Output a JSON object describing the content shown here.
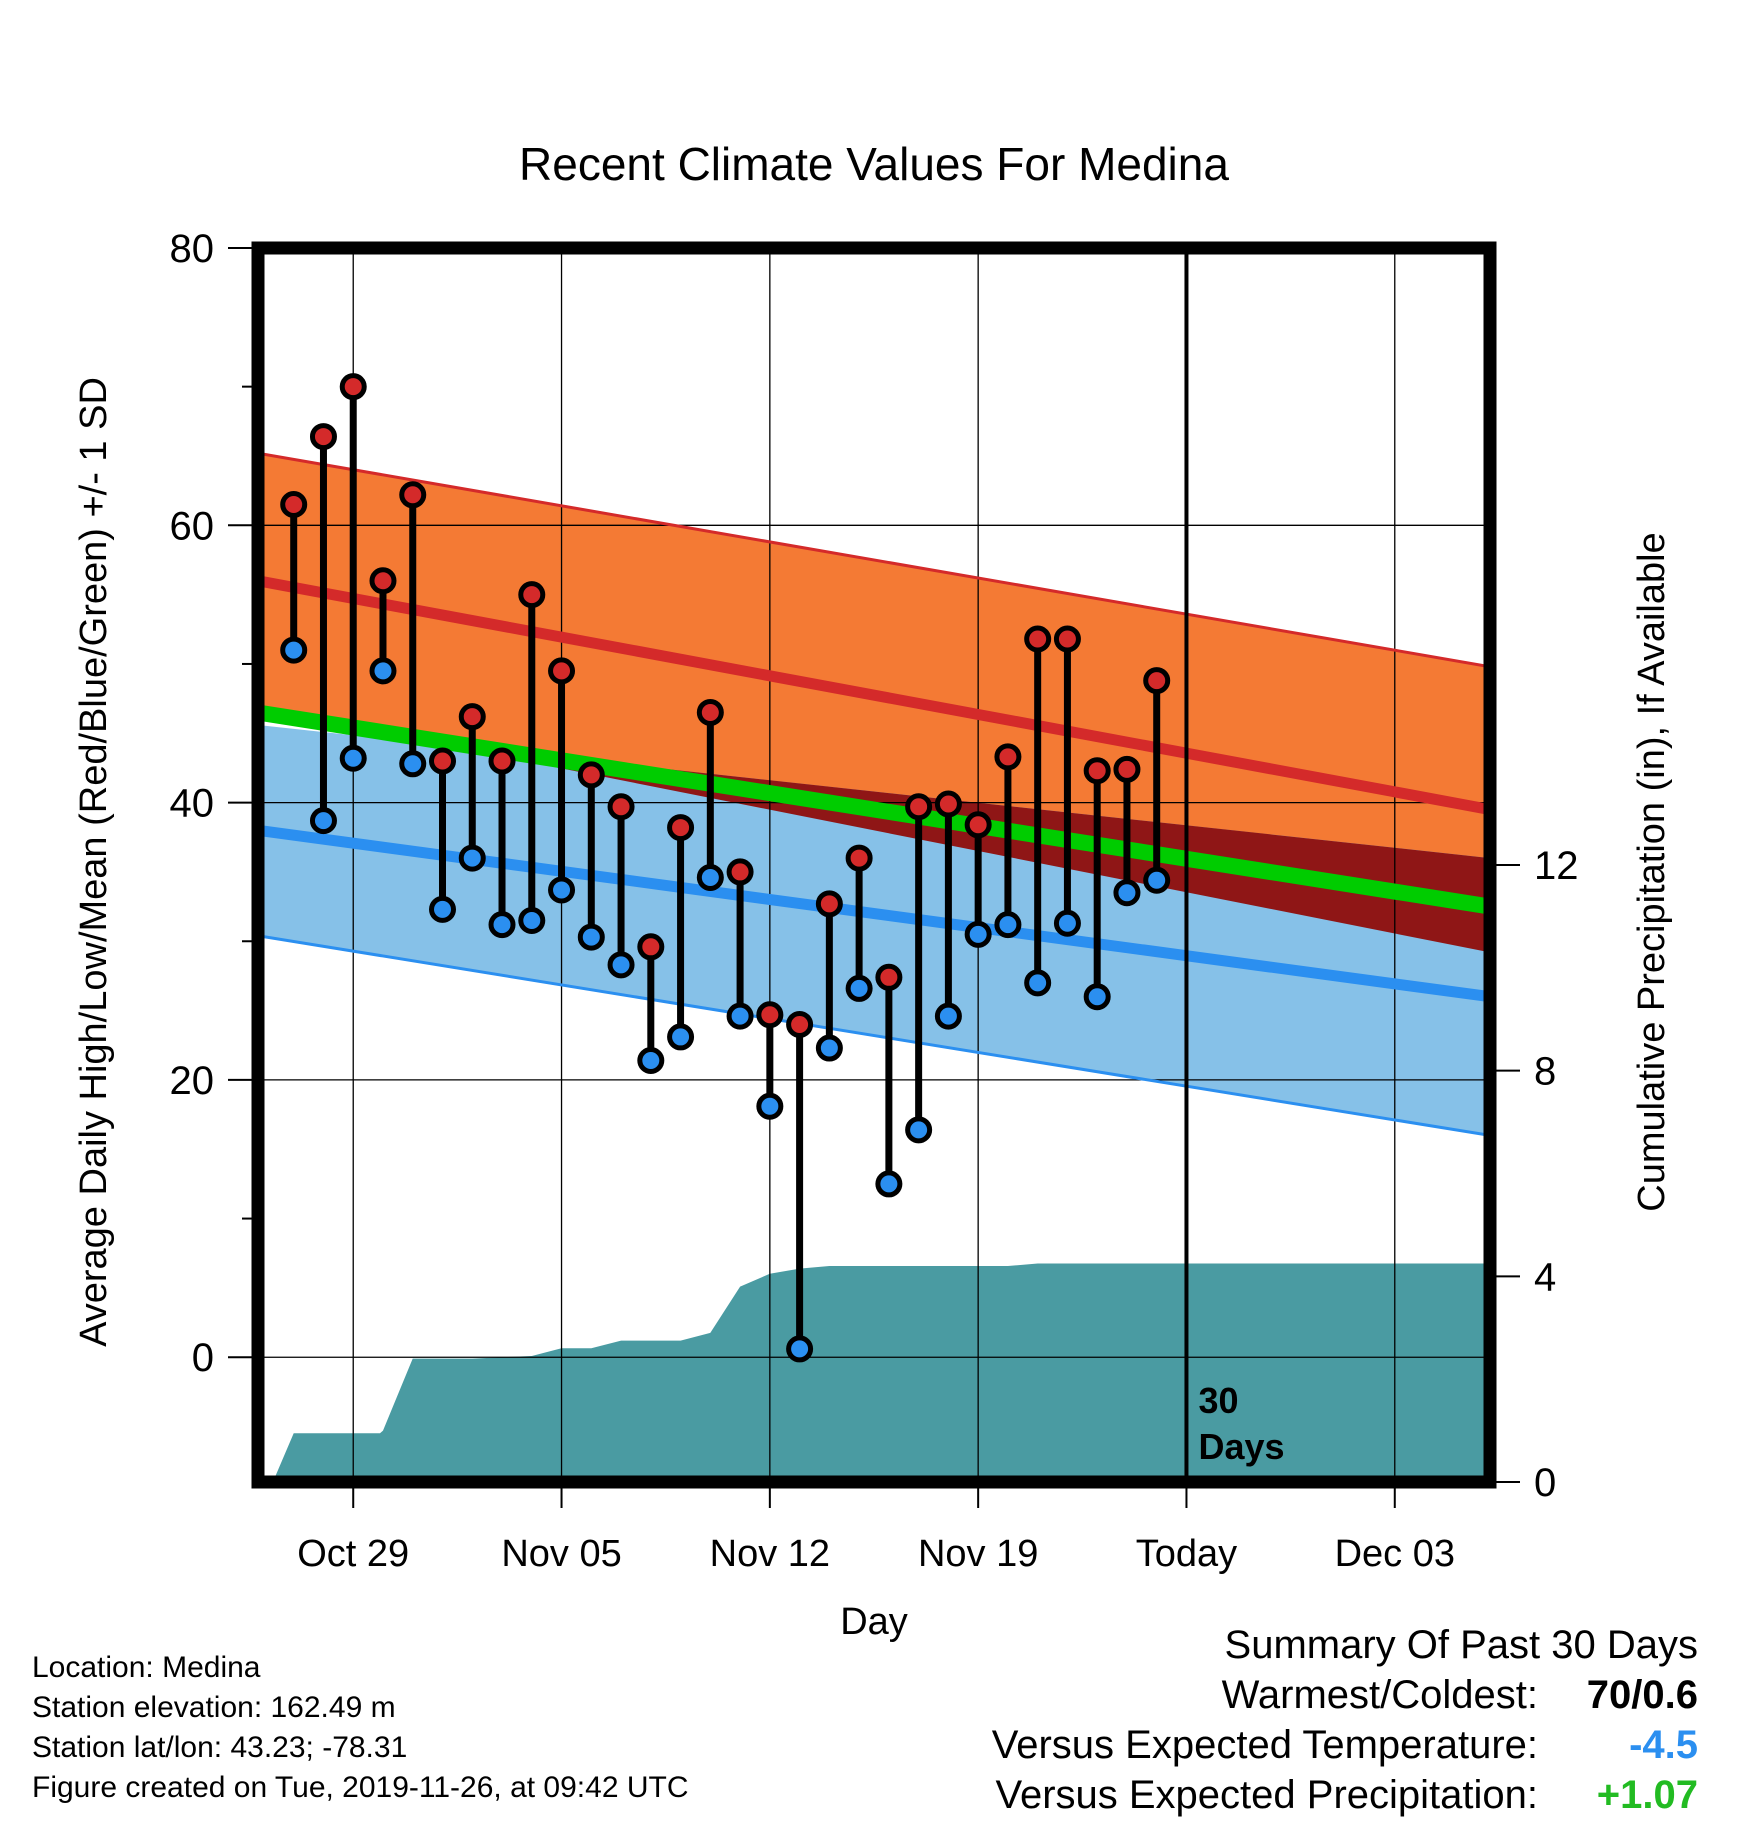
{
  "chart_data": {
    "type": "line",
    "title": "Recent Climate Values For Medina",
    "xlabel": "Day",
    "ylabel": "Average Daily High/Low/Mean (Red/Blue/Green) +/- 1 SD",
    "y2label": "Cumulative Precipitation (in), If Available",
    "ylim": [
      -9,
      80
    ],
    "y2lim": [
      0,
      24
    ],
    "yticks": [
      0,
      20,
      40,
      60,
      80
    ],
    "y2ticks": [
      0,
      4,
      8,
      12
    ],
    "xlim": [
      -3.2,
      38.2
    ],
    "xticks": [
      {
        "day": 0,
        "label": "Oct 29"
      },
      {
        "day": 7,
        "label": "Nov 05"
      },
      {
        "day": 14,
        "label": "Nov 12"
      },
      {
        "day": 21,
        "label": "Nov 19"
      },
      {
        "day": 28,
        "label": "Today"
      },
      {
        "day": 35,
        "label": "Dec 03"
      }
    ],
    "today_day": 28,
    "today_annotation": [
      "30",
      "Days"
    ],
    "grid": true,
    "colors": {
      "high_band": "#f47a34",
      "high_mean": "#d42a2a",
      "low_band": "#86c1e8",
      "low_mean": "#2b8ff0",
      "mean_line": "#00cc00",
      "overlap": "#8f1616",
      "precip": "#4a9ba2",
      "high_dot": "#d42a2a",
      "low_dot": "#2b8ff0"
    },
    "normal_high": {
      "start": 56,
      "end": 39.5,
      "sd_upper_start": 65.2,
      "sd_upper_end": 49.8
    },
    "normal_low": {
      "start": 38,
      "end": 26,
      "sd_lower_start": 30.4,
      "sd_lower_end": 16
    },
    "normal_mean": {
      "start": 46.5,
      "end": 32.5
    },
    "days": [
      -2,
      -1,
      0,
      1,
      2,
      3,
      4,
      5,
      6,
      7,
      8,
      9,
      10,
      11,
      12,
      13,
      14,
      15,
      16,
      17,
      18,
      19,
      20,
      21,
      22,
      23,
      24,
      25,
      26,
      27
    ],
    "series": [
      {
        "name": "High",
        "values": [
          61.5,
          66.4,
          70,
          56,
          62.2,
          43,
          46.2,
          43,
          55,
          49.5,
          42,
          39.7,
          29.6,
          38.2,
          46.5,
          35,
          24.7,
          24,
          32.7,
          36,
          27.4,
          39.7,
          39.9,
          38.4,
          43.3,
          51.8,
          51.8,
          42.3,
          42.4,
          48.8
        ]
      },
      {
        "name": "Low",
        "values": [
          51,
          38.7,
          43.2,
          49.5,
          42.8,
          32.3,
          36,
          31.2,
          31.5,
          33.7,
          30.3,
          28.3,
          21.4,
          23.1,
          34.6,
          24.6,
          18.1,
          0.6,
          22.3,
          26.6,
          12.5,
          16.4,
          24.6,
          30.5,
          31.2,
          27,
          31.3,
          26,
          33.5,
          34.4
        ]
      }
    ],
    "precip": {
      "x": [
        -2.7,
        -2,
        0.9,
        1,
        2,
        4,
        6,
        7,
        8,
        9,
        10,
        11,
        12,
        13,
        14,
        15,
        16,
        17,
        18,
        19,
        20,
        21,
        22,
        23,
        24,
        25,
        26,
        27,
        28,
        38.2
      ],
      "values": [
        0,
        0.95,
        0.95,
        1.0,
        2.4,
        2.4,
        2.45,
        2.6,
        2.6,
        2.75,
        2.75,
        2.75,
        2.9,
        3.8,
        4.05,
        4.15,
        4.2,
        4.2,
        4.2,
        4.2,
        4.2,
        4.2,
        4.2,
        4.25,
        4.25,
        4.25,
        4.25,
        4.25,
        4.25,
        4.25
      ]
    }
  },
  "info": {
    "location": "Location: Medina",
    "elevation": "Station elevation: 162.49 m",
    "latlon": "Station lat/lon: 43.23; -78.31",
    "created": "Figure created on Tue, 2019-11-26, at 09:42 UTC"
  },
  "summary": {
    "heading": "Summary Of Past 30 Days",
    "warmest_label": "Warmest/Coldest:",
    "warmest_value": "70/0.6",
    "temp_label": "Versus Expected Temperature:",
    "temp_value": "-4.5",
    "precip_label": "Versus Expected Precipitation:",
    "precip_value": "+1.07"
  }
}
